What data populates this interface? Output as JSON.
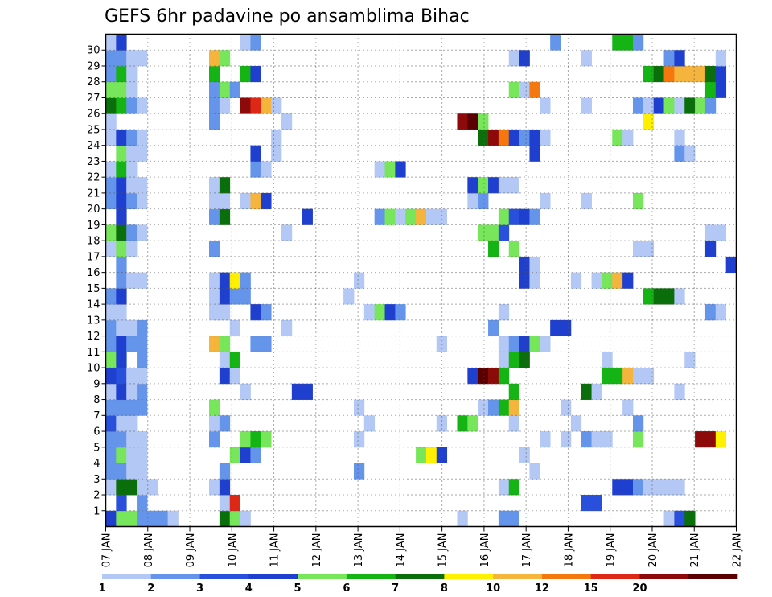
{
  "chart_data": {
    "type": "heatmap",
    "title": "GEFS 6hr padavine po ansamblima Bihac",
    "xlabel": "",
    "ylabel": "",
    "x_ticks": [
      "07 JAN",
      "08 JAN",
      "09 JAN",
      "10 JAN",
      "11 JAN",
      "12 JAN",
      "13 JAN",
      "14 JAN",
      "15 JAN",
      "16 JAN",
      "17 JAN",
      "18 JAN",
      "19 JAN",
      "20 JAN",
      "21 JAN",
      "22 JAN"
    ],
    "y_ticks": [
      1,
      2,
      3,
      4,
      5,
      6,
      7,
      8,
      9,
      10,
      11,
      12,
      13,
      14,
      15,
      16,
      17,
      18,
      19,
      20,
      21,
      22,
      23,
      24,
      25,
      26,
      27,
      28,
      29,
      30
    ],
    "grid": true,
    "legend": {
      "position": "bottom",
      "labels": [
        "1",
        "2",
        "3",
        "4",
        "5",
        "6",
        "7",
        "8",
        "10",
        "12",
        "15",
        "20"
      ],
      "colors": [
        "#b4c8f5",
        "#6495eb",
        "#2850dc",
        "#1f3fcf",
        "#78e65a",
        "#14b414",
        "#0a6e0a",
        "#fff000",
        "#f5b43c",
        "#f5780f",
        "#dc2814",
        "#8c0a0a",
        "#5a0000"
      ]
    },
    "cell_grid": "members 0-30 (rows) x 6-hourly steps 0-60 (columns); value = color bin index 0-12 (bin 0 = 1-2 mm ... bin 12 = >20 mm)",
    "cells": [
      [
        0,
        0,
        3
      ],
      [
        0,
        1,
        4
      ],
      [
        0,
        2,
        4
      ],
      [
        0,
        3,
        1
      ],
      [
        0,
        4,
        1
      ],
      [
        0,
        5,
        1
      ],
      [
        0,
        6,
        0
      ],
      [
        0,
        11,
        6
      ],
      [
        0,
        12,
        4
      ],
      [
        0,
        13,
        0
      ],
      [
        0,
        34,
        0
      ],
      [
        0,
        38,
        1
      ],
      [
        0,
        39,
        1
      ],
      [
        0,
        54,
        0
      ],
      [
        0,
        55,
        2
      ],
      [
        0,
        56,
        6
      ],
      [
        1,
        1,
        2
      ],
      [
        1,
        3,
        1
      ],
      [
        1,
        11,
        0
      ],
      [
        1,
        12,
        10
      ],
      [
        1,
        46,
        2
      ],
      [
        1,
        47,
        2
      ],
      [
        2,
        0,
        0
      ],
      [
        2,
        1,
        6
      ],
      [
        2,
        2,
        6
      ],
      [
        2,
        3,
        0
      ],
      [
        2,
        4,
        0
      ],
      [
        2,
        10,
        0
      ],
      [
        2,
        11,
        3
      ],
      [
        2,
        38,
        0
      ],
      [
        2,
        39,
        5
      ],
      [
        2,
        49,
        3
      ],
      [
        2,
        50,
        3
      ],
      [
        2,
        51,
        1
      ],
      [
        2,
        52,
        0
      ],
      [
        2,
        53,
        0
      ],
      [
        2,
        54,
        0
      ],
      [
        2,
        55,
        0
      ],
      [
        3,
        0,
        1
      ],
      [
        3,
        1,
        1
      ],
      [
        3,
        2,
        0
      ],
      [
        3,
        3,
        0
      ],
      [
        3,
        11,
        1
      ],
      [
        3,
        24,
        1
      ],
      [
        3,
        41,
        0
      ],
      [
        4,
        0,
        1
      ],
      [
        4,
        1,
        4
      ],
      [
        4,
        2,
        0
      ],
      [
        4,
        3,
        0
      ],
      [
        4,
        12,
        4
      ],
      [
        4,
        13,
        3
      ],
      [
        4,
        14,
        1
      ],
      [
        4,
        30,
        4
      ],
      [
        4,
        31,
        7
      ],
      [
        4,
        32,
        3
      ],
      [
        4,
        40,
        0
      ],
      [
        5,
        0,
        1
      ],
      [
        5,
        1,
        1
      ],
      [
        5,
        2,
        0
      ],
      [
        5,
        3,
        0
      ],
      [
        5,
        10,
        1
      ],
      [
        5,
        13,
        4
      ],
      [
        5,
        14,
        5
      ],
      [
        5,
        15,
        4
      ],
      [
        5,
        24,
        0
      ],
      [
        5,
        42,
        0
      ],
      [
        5,
        44,
        0
      ],
      [
        5,
        46,
        1
      ],
      [
        5,
        47,
        0
      ],
      [
        5,
        48,
        0
      ],
      [
        5,
        51,
        4
      ],
      [
        5,
        57,
        11
      ],
      [
        5,
        58,
        11
      ],
      [
        5,
        59,
        7
      ],
      [
        6,
        0,
        2
      ],
      [
        6,
        1,
        0
      ],
      [
        6,
        2,
        0
      ],
      [
        6,
        10,
        0
      ],
      [
        6,
        11,
        1
      ],
      [
        6,
        25,
        0
      ],
      [
        6,
        32,
        0
      ],
      [
        6,
        34,
        5
      ],
      [
        6,
        35,
        4
      ],
      [
        6,
        39,
        0
      ],
      [
        6,
        45,
        0
      ],
      [
        6,
        51,
        1
      ],
      [
        7,
        0,
        1
      ],
      [
        7,
        1,
        1
      ],
      [
        7,
        2,
        1
      ],
      [
        7,
        3,
        1
      ],
      [
        7,
        10,
        4
      ],
      [
        7,
        24,
        0
      ],
      [
        7,
        36,
        0
      ],
      [
        7,
        37,
        1
      ],
      [
        7,
        38,
        5
      ],
      [
        7,
        39,
        8
      ],
      [
        7,
        44,
        0
      ],
      [
        7,
        50,
        0
      ],
      [
        8,
        0,
        0
      ],
      [
        8,
        1,
        3
      ],
      [
        8,
        2,
        0
      ],
      [
        8,
        3,
        1
      ],
      [
        8,
        13,
        0
      ],
      [
        8,
        18,
        3
      ],
      [
        8,
        19,
        3
      ],
      [
        8,
        39,
        5
      ],
      [
        8,
        46,
        6
      ],
      [
        8,
        47,
        0
      ],
      [
        8,
        55,
        0
      ],
      [
        9,
        0,
        3
      ],
      [
        9,
        1,
        2
      ],
      [
        9,
        2,
        0
      ],
      [
        9,
        3,
        0
      ],
      [
        9,
        11,
        3
      ],
      [
        9,
        12,
        0
      ],
      [
        9,
        35,
        3
      ],
      [
        9,
        36,
        12
      ],
      [
        9,
        37,
        11
      ],
      [
        9,
        38,
        5
      ],
      [
        9,
        48,
        5
      ],
      [
        9,
        49,
        5
      ],
      [
        9,
        50,
        8
      ],
      [
        9,
        51,
        0
      ],
      [
        9,
        52,
        0
      ],
      [
        10,
        0,
        4
      ],
      [
        10,
        1,
        3
      ],
      [
        10,
        3,
        1
      ],
      [
        10,
        11,
        0
      ],
      [
        10,
        12,
        5
      ],
      [
        10,
        38,
        0
      ],
      [
        10,
        39,
        5
      ],
      [
        10,
        40,
        6
      ],
      [
        10,
        48,
        0
      ],
      [
        10,
        56,
        0
      ],
      [
        11,
        0,
        1
      ],
      [
        11,
        1,
        3
      ],
      [
        11,
        2,
        1
      ],
      [
        11,
        3,
        1
      ],
      [
        11,
        10,
        8
      ],
      [
        11,
        11,
        4
      ],
      [
        11,
        14,
        1
      ],
      [
        11,
        15,
        1
      ],
      [
        11,
        32,
        0
      ],
      [
        11,
        38,
        0
      ],
      [
        11,
        39,
        1
      ],
      [
        11,
        40,
        3
      ],
      [
        11,
        41,
        4
      ],
      [
        11,
        42,
        0
      ],
      [
        12,
        0,
        1
      ],
      [
        12,
        1,
        0
      ],
      [
        12,
        2,
        0
      ],
      [
        12,
        3,
        1
      ],
      [
        12,
        12,
        0
      ],
      [
        12,
        17,
        0
      ],
      [
        12,
        37,
        1
      ],
      [
        12,
        43,
        3
      ],
      [
        12,
        44,
        3
      ],
      [
        13,
        0,
        0
      ],
      [
        13,
        1,
        0
      ],
      [
        13,
        10,
        0
      ],
      [
        13,
        11,
        0
      ],
      [
        13,
        14,
        3
      ],
      [
        13,
        15,
        1
      ],
      [
        13,
        25,
        0
      ],
      [
        13,
        26,
        4
      ],
      [
        13,
        27,
        3
      ],
      [
        13,
        28,
        1
      ],
      [
        13,
        38,
        0
      ],
      [
        13,
        58,
        1
      ],
      [
        13,
        59,
        0
      ],
      [
        14,
        0,
        1
      ],
      [
        14,
        1,
        3
      ],
      [
        14,
        10,
        0
      ],
      [
        14,
        11,
        3
      ],
      [
        14,
        12,
        1
      ],
      [
        14,
        13,
        1
      ],
      [
        14,
        23,
        0
      ],
      [
        14,
        52,
        5
      ],
      [
        14,
        53,
        6
      ],
      [
        14,
        54,
        6
      ],
      [
        14,
        55,
        0
      ],
      [
        15,
        1,
        1
      ],
      [
        15,
        2,
        0
      ],
      [
        15,
        3,
        0
      ],
      [
        15,
        10,
        0
      ],
      [
        15,
        11,
        3
      ],
      [
        15,
        12,
        7
      ],
      [
        15,
        13,
        1
      ],
      [
        15,
        24,
        0
      ],
      [
        15,
        40,
        3
      ],
      [
        15,
        41,
        0
      ],
      [
        15,
        45,
        0
      ],
      [
        15,
        47,
        0
      ],
      [
        15,
        48,
        4
      ],
      [
        15,
        49,
        8
      ],
      [
        15,
        50,
        3
      ],
      [
        16,
        1,
        1
      ],
      [
        16,
        40,
        3
      ],
      [
        16,
        41,
        0
      ],
      [
        16,
        60,
        3
      ],
      [
        17,
        0,
        0
      ],
      [
        17,
        1,
        4
      ],
      [
        17,
        2,
        0
      ],
      [
        17,
        10,
        1
      ],
      [
        17,
        37,
        5
      ],
      [
        17,
        39,
        4
      ],
      [
        17,
        51,
        0
      ],
      [
        17,
        52,
        0
      ],
      [
        17,
        58,
        3
      ],
      [
        18,
        0,
        4
      ],
      [
        18,
        1,
        6
      ],
      [
        18,
        2,
        1
      ],
      [
        18,
        3,
        0
      ],
      [
        18,
        17,
        0
      ],
      [
        18,
        36,
        4
      ],
      [
        18,
        37,
        4
      ],
      [
        18,
        38,
        2
      ],
      [
        18,
        59,
        0
      ],
      [
        18,
        58,
        0
      ],
      [
        19,
        1,
        3
      ],
      [
        19,
        10,
        1
      ],
      [
        19,
        11,
        6
      ],
      [
        19,
        19,
        3
      ],
      [
        19,
        26,
        1
      ],
      [
        19,
        27,
        4
      ],
      [
        19,
        28,
        0
      ],
      [
        19,
        29,
        4
      ],
      [
        19,
        30,
        8
      ],
      [
        19,
        31,
        0
      ],
      [
        19,
        32,
        0
      ],
      [
        19,
        38,
        4
      ],
      [
        19,
        39,
        2
      ],
      [
        19,
        40,
        3
      ],
      [
        19,
        41,
        1
      ],
      [
        20,
        0,
        1
      ],
      [
        20,
        1,
        3
      ],
      [
        20,
        2,
        1
      ],
      [
        20,
        3,
        0
      ],
      [
        20,
        10,
        0
      ],
      [
        20,
        11,
        0
      ],
      [
        20,
        13,
        0
      ],
      [
        20,
        14,
        8
      ],
      [
        20,
        15,
        3
      ],
      [
        20,
        35,
        0
      ],
      [
        20,
        36,
        1
      ],
      [
        20,
        42,
        0
      ],
      [
        20,
        46,
        0
      ],
      [
        20,
        51,
        4
      ],
      [
        21,
        0,
        1
      ],
      [
        21,
        1,
        3
      ],
      [
        21,
        2,
        0
      ],
      [
        21,
        3,
        0
      ],
      [
        21,
        10,
        0
      ],
      [
        21,
        11,
        6
      ],
      [
        21,
        35,
        3
      ],
      [
        21,
        36,
        4
      ],
      [
        21,
        37,
        3
      ],
      [
        21,
        38,
        0
      ],
      [
        21,
        39,
        0
      ],
      [
        22,
        0,
        0
      ],
      [
        22,
        1,
        5
      ],
      [
        22,
        2,
        0
      ],
      [
        22,
        14,
        1
      ],
      [
        22,
        15,
        0
      ],
      [
        22,
        26,
        0
      ],
      [
        22,
        27,
        4
      ],
      [
        22,
        28,
        3
      ],
      [
        23,
        1,
        4
      ],
      [
        23,
        2,
        0
      ],
      [
        23,
        3,
        0
      ],
      [
        23,
        14,
        3
      ],
      [
        23,
        16,
        0
      ],
      [
        23,
        41,
        3
      ],
      [
        23,
        55,
        1
      ],
      [
        23,
        56,
        0
      ],
      [
        24,
        0,
        0
      ],
      [
        24,
        1,
        3
      ],
      [
        24,
        2,
        1
      ],
      [
        24,
        3,
        0
      ],
      [
        24,
        16,
        0
      ],
      [
        24,
        36,
        6
      ],
      [
        24,
        37,
        11
      ],
      [
        24,
        38,
        9
      ],
      [
        24,
        39,
        3
      ],
      [
        24,
        40,
        1
      ],
      [
        24,
        41,
        3
      ],
      [
        24,
        42,
        0
      ],
      [
        24,
        49,
        4
      ],
      [
        24,
        50,
        0
      ],
      [
        24,
        55,
        0
      ],
      [
        25,
        0,
        0
      ],
      [
        25,
        10,
        1
      ],
      [
        25,
        17,
        0
      ],
      [
        25,
        34,
        11
      ],
      [
        25,
        35,
        12
      ],
      [
        25,
        36,
        4
      ],
      [
        25,
        52,
        7
      ],
      [
        26,
        0,
        6
      ],
      [
        26,
        1,
        5
      ],
      [
        26,
        2,
        1
      ],
      [
        26,
        3,
        0
      ],
      [
        26,
        10,
        1
      ],
      [
        26,
        11,
        0
      ],
      [
        26,
        13,
        11
      ],
      [
        26,
        14,
        10
      ],
      [
        26,
        15,
        8
      ],
      [
        26,
        16,
        0
      ],
      [
        26,
        42,
        0
      ],
      [
        26,
        46,
        0
      ],
      [
        26,
        51,
        1
      ],
      [
        26,
        52,
        0
      ],
      [
        26,
        53,
        3
      ],
      [
        26,
        54,
        4
      ],
      [
        26,
        55,
        0
      ],
      [
        26,
        56,
        6
      ],
      [
        26,
        57,
        4
      ],
      [
        26,
        58,
        1
      ],
      [
        27,
        0,
        4
      ],
      [
        27,
        1,
        4
      ],
      [
        27,
        2,
        0
      ],
      [
        27,
        10,
        1
      ],
      [
        27,
        11,
        4
      ],
      [
        27,
        12,
        1
      ],
      [
        27,
        39,
        4
      ],
      [
        27,
        40,
        0
      ],
      [
        27,
        41,
        9
      ],
      [
        27,
        58,
        5
      ],
      [
        27,
        59,
        3
      ],
      [
        28,
        0,
        1
      ],
      [
        28,
        1,
        5
      ],
      [
        28,
        2,
        0
      ],
      [
        28,
        10,
        5
      ],
      [
        28,
        13,
        5
      ],
      [
        28,
        14,
        3
      ],
      [
        28,
        52,
        5
      ],
      [
        28,
        53,
        6
      ],
      [
        28,
        54,
        9
      ],
      [
        28,
        55,
        8
      ],
      [
        28,
        56,
        8
      ],
      [
        28,
        57,
        8
      ],
      [
        28,
        58,
        6
      ],
      [
        28,
        59,
        3
      ],
      [
        29,
        0,
        1
      ],
      [
        29,
        1,
        1
      ],
      [
        29,
        2,
        0
      ],
      [
        29,
        3,
        0
      ],
      [
        29,
        10,
        8
      ],
      [
        29,
        11,
        4
      ],
      [
        29,
        39,
        0
      ],
      [
        29,
        40,
        3
      ],
      [
        29,
        46,
        0
      ],
      [
        29,
        54,
        1
      ],
      [
        29,
        55,
        3
      ],
      [
        29,
        59,
        0
      ],
      [
        30,
        0,
        0
      ],
      [
        30,
        1,
        3
      ],
      [
        30,
        13,
        0
      ],
      [
        30,
        14,
        1
      ],
      [
        30,
        43,
        1
      ],
      [
        30,
        49,
        5
      ],
      [
        30,
        50,
        5
      ],
      [
        30,
        51,
        1
      ]
    ]
  }
}
